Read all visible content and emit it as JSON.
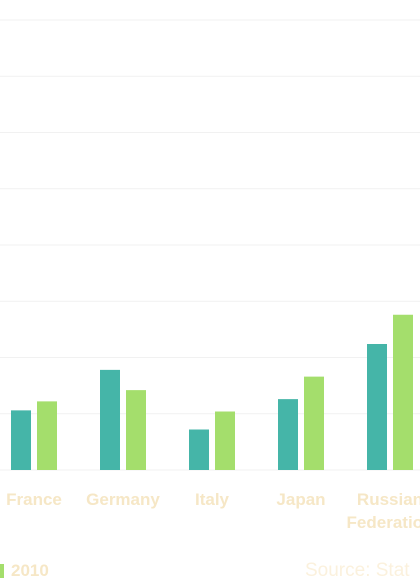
{
  "chart_data": {
    "type": "bar",
    "categories": [
      "France",
      "Germany",
      "Italy",
      "Japan",
      "Russian Federation"
    ],
    "series": [
      {
        "name": "",
        "color": "#45b5a8",
        "values": [
          5.3,
          8.9,
          3.6,
          6.3,
          11.2
        ]
      },
      {
        "name": "2010",
        "color": "#a4de6c",
        "values": [
          6.1,
          7.1,
          5.2,
          8.3,
          13.8
        ]
      }
    ],
    "ylim": [
      0,
      40
    ],
    "grid": true,
    "legend_position": "bottom-left"
  },
  "legend": {
    "label": "2010"
  },
  "source": "Source: Stat"
}
